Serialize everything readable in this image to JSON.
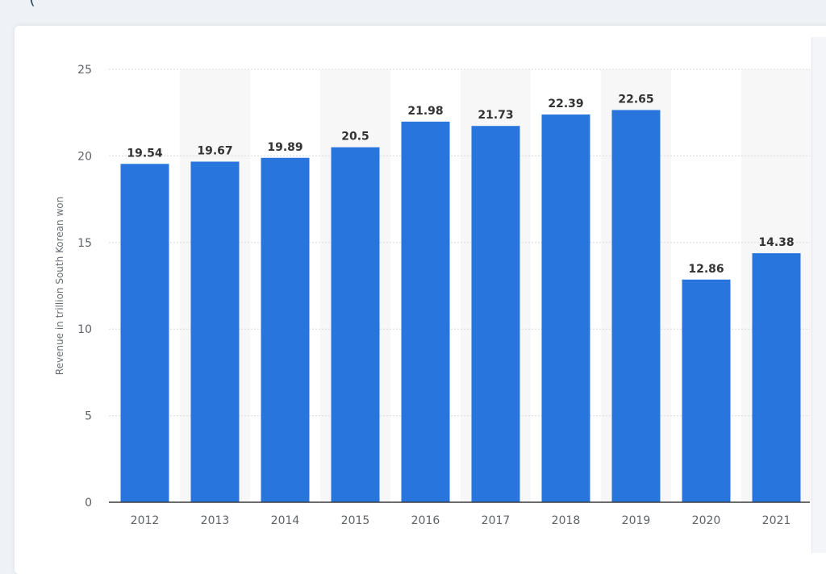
{
  "header_fragment": "(",
  "chart_data": {
    "type": "bar",
    "title": "",
    "xlabel": "",
    "ylabel": "Revenue in trillion South Korean won",
    "categories": [
      "2012",
      "2013",
      "2014",
      "2015",
      "2016",
      "2017",
      "2018",
      "2019",
      "2020",
      "2021"
    ],
    "values": [
      19.54,
      19.67,
      19.89,
      20.5,
      21.98,
      21.73,
      22.39,
      22.65,
      12.86,
      14.38
    ],
    "value_labels": [
      "19.54",
      "19.67",
      "19.89",
      "20.5",
      "21.98",
      "21.73",
      "22.39",
      "22.65",
      "12.86",
      "14.38"
    ],
    "ylim": [
      0,
      25
    ],
    "yticks": [
      "0",
      "5",
      "10",
      "15",
      "20",
      "25"
    ],
    "grid": true,
    "bar_color": "#2876dd",
    "alt_band_color": "#f7f7f8"
  }
}
